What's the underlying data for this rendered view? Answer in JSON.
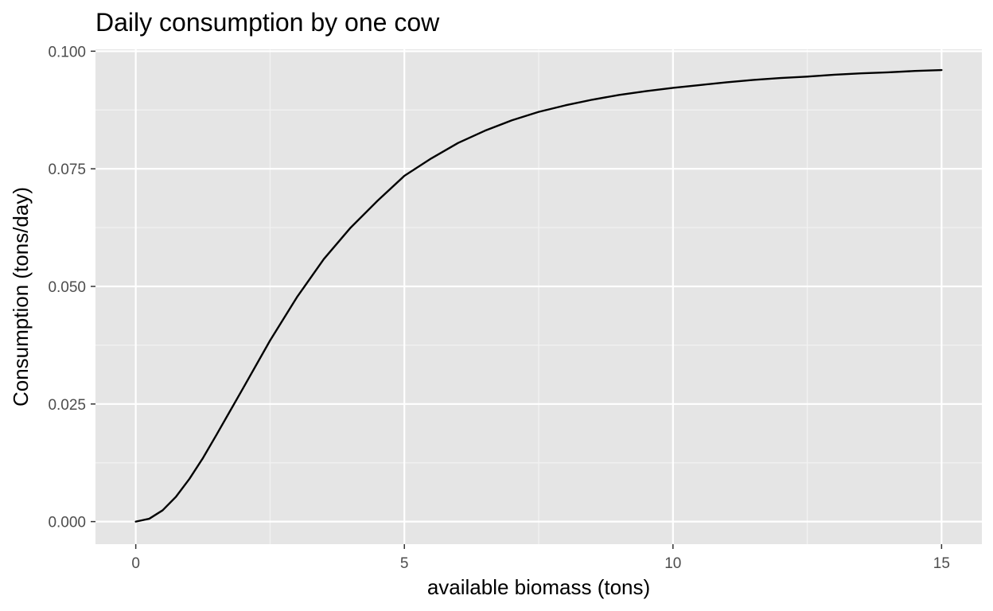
{
  "chart_data": {
    "type": "line",
    "title": "Daily consumption by one cow",
    "xlabel": "available biomass (tons)",
    "ylabel": "Consumption (tons/day)",
    "xlim": [
      -0.75,
      15.75
    ],
    "ylim": [
      -0.0048,
      0.1004
    ],
    "x_ticks": [
      0,
      5,
      10,
      15
    ],
    "x_tick_labels": [
      "0",
      "5",
      "10",
      "15"
    ],
    "x_minor_ticks": [
      2.5,
      7.5,
      12.5
    ],
    "y_ticks": [
      0,
      0.025,
      0.05,
      0.075,
      0.1
    ],
    "y_tick_labels": [
      "0.000",
      "0.025",
      "0.050",
      "0.075",
      "0.100"
    ],
    "y_minor_ticks": [
      0.0125,
      0.0375,
      0.0625,
      0.0875
    ],
    "grid": true,
    "colors": {
      "panel_background": "#e5e5e5",
      "grid_major": "#ffffff",
      "grid_minor": "#f2f2f2",
      "line": "#000000"
    },
    "series": [
      {
        "x": [
          0,
          0.25,
          0.5,
          0.75,
          1,
          1.25,
          1.5,
          1.75,
          2,
          2.5,
          3,
          3.5,
          4,
          4.5,
          5,
          5.5,
          6,
          6.5,
          7,
          7.5,
          8,
          8.5,
          9,
          9.5,
          10,
          10.5,
          11,
          11.5,
          12,
          12.5,
          13,
          13.5,
          14,
          14.5,
          15
        ],
        "y": [
          0,
          0.0006,
          0.0024,
          0.0053,
          0.0091,
          0.0135,
          0.0184,
          0.0234,
          0.0284,
          0.0385,
          0.0477,
          0.0558,
          0.0625,
          0.0682,
          0.0735,
          0.0772,
          0.0805,
          0.0831,
          0.0853,
          0.0871,
          0.0885,
          0.0897,
          0.0907,
          0.0915,
          0.0922,
          0.0928,
          0.0934,
          0.0939,
          0.0943,
          0.0946,
          0.095,
          0.0953,
          0.0955,
          0.0958,
          0.096
        ]
      }
    ]
  }
}
